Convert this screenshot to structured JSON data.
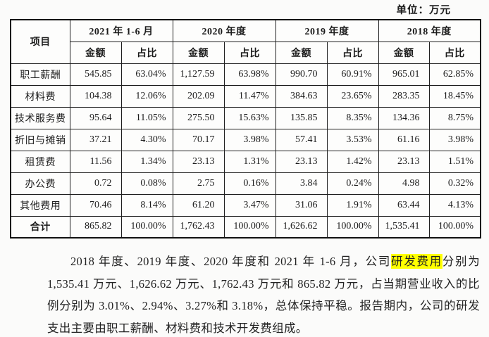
{
  "unit_label": "单位：万元",
  "table": {
    "corner_header": "项目",
    "period_headers": [
      "2021 年 1-6 月",
      "2020 年度",
      "2019 年度",
      "2018 年度"
    ],
    "sub_headers": {
      "amount": "金额",
      "ratio": "占比"
    },
    "rows": [
      {
        "item": "职工薪酬",
        "values": [
          "545.85",
          "63.04%",
          "1,127.59",
          "63.98%",
          "990.70",
          "60.91%",
          "965.01",
          "62.85%"
        ]
      },
      {
        "item": "材料费",
        "values": [
          "104.38",
          "12.06%",
          "202.09",
          "11.47%",
          "384.63",
          "23.65%",
          "283.35",
          "18.45%"
        ]
      },
      {
        "item": "技术服务费",
        "values": [
          "95.64",
          "11.05%",
          "275.50",
          "15.63%",
          "135.85",
          "8.35%",
          "134.36",
          "8.75%"
        ]
      },
      {
        "item": "折旧与摊销",
        "values": [
          "37.21",
          "4.30%",
          "70.17",
          "3.98%",
          "57.41",
          "3.53%",
          "61.16",
          "3.98%"
        ]
      },
      {
        "item": "租赁费",
        "values": [
          "11.56",
          "1.34%",
          "23.13",
          "1.31%",
          "23.13",
          "1.42%",
          "23.13",
          "1.51%"
        ]
      },
      {
        "item": "办公费",
        "values": [
          "0.72",
          "0.08%",
          "2.75",
          "0.16%",
          "3.84",
          "0.24%",
          "4.98",
          "0.32%"
        ]
      },
      {
        "item": "其他费用",
        "values": [
          "70.46",
          "8.14%",
          "61.20",
          "3.47%",
          "31.06",
          "1.91%",
          "63.44",
          "4.13%"
        ]
      }
    ],
    "total_row": {
      "item": "合计",
      "values": [
        "865.82",
        "100.00%",
        "1,762.43",
        "100.00%",
        "1,626.62",
        "100.00%",
        "1,535.41",
        "100.00%"
      ]
    }
  },
  "paragraph": {
    "part1": "2018 年度、2019 年度、2020 年度和 2021 年 1-6 月，公司",
    "highlight": "研发费用",
    "part2": "分别为 1,535.41 万元、1,626.62 万元、1,762.43 万元和 865.82 万元，占当期营业收入的比例分别为 3.01%、2.94%、3.27%和 3.18%，总体保持平稳。报告期内，公司的研发支出主要由职工薪酬、材料费和技术开发费组成。"
  },
  "colors": {
    "highlight": "#ffff00",
    "border": "#1f1f1f",
    "text": "#1c1c1c",
    "background": "#fbfbfa"
  }
}
